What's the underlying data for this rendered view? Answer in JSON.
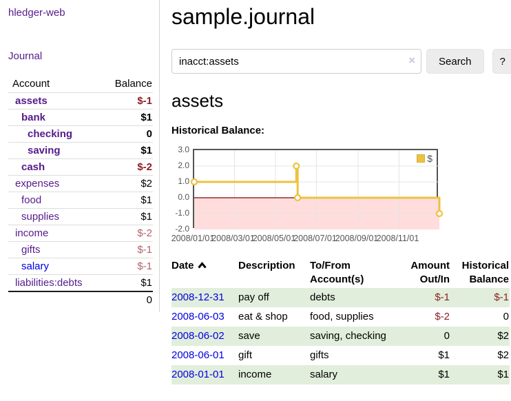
{
  "sidebar": {
    "brand": "hledger-web",
    "journal_link": "Journal",
    "headers": {
      "account": "Account",
      "balance": "Balance"
    },
    "accounts": [
      {
        "name": "assets",
        "depth": 1,
        "balance": "$-1",
        "in_account": true,
        "negative": "strong"
      },
      {
        "name": "bank",
        "depth": 2,
        "balance": "$1",
        "in_account": true,
        "negative": "none"
      },
      {
        "name": "checking",
        "depth": 3,
        "balance": "0",
        "in_account": true,
        "negative": "none"
      },
      {
        "name": "saving",
        "depth": 3,
        "balance": "$1",
        "in_account": true,
        "negative": "none"
      },
      {
        "name": "cash",
        "depth": 2,
        "balance": "$-2",
        "in_account": true,
        "negative": "strong"
      },
      {
        "name": "expenses",
        "depth": 1,
        "balance": "$2",
        "in_account": false,
        "negative": "none"
      },
      {
        "name": "food",
        "depth": 2,
        "balance": "$1",
        "in_account": false,
        "negative": "none"
      },
      {
        "name": "supplies",
        "depth": 2,
        "balance": "$1",
        "in_account": false,
        "negative": "none"
      },
      {
        "name": "income",
        "depth": 1,
        "balance": "$-2",
        "in_account": false,
        "negative": "soft"
      },
      {
        "name": "gifts",
        "depth": 2,
        "balance": "$-1",
        "in_account": false,
        "negative": "soft"
      },
      {
        "name": "salary",
        "depth": 2,
        "balance": "$-1",
        "in_account": false,
        "negative": "soft",
        "link_color": "blue"
      },
      {
        "name": "liabilities:debts",
        "depth": 1,
        "balance": "$1",
        "in_account": false,
        "negative": "none"
      }
    ],
    "total": "0"
  },
  "header": {
    "title": "sample.journal"
  },
  "search": {
    "value": "inacct:assets",
    "button_label": "Search",
    "help_label": "?"
  },
  "icons": {
    "clear": "×",
    "sort": "chevron-up",
    "legend_swatch": "yellow-square"
  },
  "account_page": {
    "heading": "assets",
    "chart_label": "Historical Balance:"
  },
  "chart_data": {
    "type": "line",
    "step": true,
    "title": "Historical Balance",
    "series": [
      {
        "name": "$",
        "color": "#edc240",
        "points": [
          [
            "2008-01-01",
            1
          ],
          [
            "2008-06-01",
            2
          ],
          [
            "2008-06-03",
            0
          ],
          [
            "2008-12-31",
            -1
          ]
        ]
      }
    ],
    "x_range": [
      "2008-01-01",
      "2008-12-31"
    ],
    "ylim": [
      -2,
      3
    ],
    "y_ticks": [
      "3.0",
      "2.0",
      "1.0",
      "0.0",
      "-1.0",
      "-2.0"
    ],
    "x_ticks": [
      "2008/01/01",
      "2008/03/01",
      "2008/05/01",
      "2008/07/01",
      "2008/09/01",
      "2008/11/01"
    ],
    "legend": {
      "label": "$",
      "position": "top-right"
    },
    "grid": true,
    "grid_color": "#e4e4e4",
    "negative_region_color": "#ffdddd",
    "zero_line_color": "#8b0000",
    "border_color": "#545454"
  },
  "register": {
    "headers": {
      "date": "Date",
      "description": "Description",
      "accounts": "To/From Account(s)",
      "amount": "Amount Out/In",
      "balance": "Historical Balance"
    },
    "sort": {
      "column": "date",
      "direction": "ascending"
    },
    "rows": [
      {
        "date": "2008-12-31",
        "description": "pay off",
        "accounts": "debts",
        "amount": "$-1",
        "balance": "$-1",
        "amount_negative": true,
        "balance_negative": true
      },
      {
        "date": "2008-06-03",
        "description": "eat & shop",
        "accounts": "food, supplies",
        "amount": "$-2",
        "balance": "0",
        "amount_negative": true,
        "balance_negative": false
      },
      {
        "date": "2008-06-02",
        "description": "save",
        "accounts": "saving, checking",
        "amount": "0",
        "balance": "$2",
        "amount_negative": false,
        "balance_negative": false
      },
      {
        "date": "2008-06-01",
        "description": "gift",
        "accounts": "gifts",
        "amount": "$1",
        "balance": "$2",
        "amount_negative": false,
        "balance_negative": false
      },
      {
        "date": "2008-01-01",
        "description": "income",
        "accounts": "salary",
        "amount": "$1",
        "balance": "$1",
        "amount_negative": false,
        "balance_negative": false
      }
    ]
  },
  "colors": {
    "link_purple": "#551a8b",
    "link_blue": "#0000e0",
    "negative_strong": "#8b2026",
    "negative_soft": "#b0646c",
    "row_stripe_green": "#e1eedb",
    "chart_line": "#edc240"
  }
}
